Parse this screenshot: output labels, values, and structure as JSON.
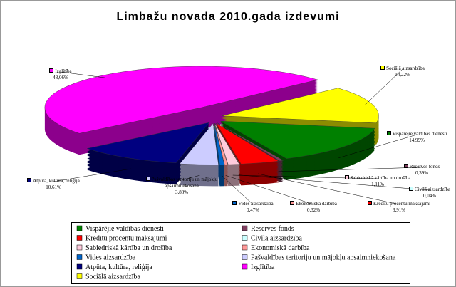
{
  "chart_data": {
    "type": "pie",
    "title": "Limbažu novada 2010.gada izdevumi",
    "categories": [
      "Vispārējie valdības dienesti",
      "Reserves fonds",
      "Kredītu procentu maksājumi",
      "Civilā aizsardzība",
      "Sabiedriskā kārtība un drošība",
      "Ekonomiskā darbība",
      "Vides aizsardzība",
      "Pašvaldības teritoriju un mājokļu apsaimniekošana",
      "Atpūta, kultūra, reliģija",
      "Izglītība",
      "Sociālā aizsardzība"
    ],
    "values": [
      14.99,
      0.39,
      3.91,
      0.04,
      1.11,
      0.32,
      0.47,
      3.88,
      10.61,
      48.06,
      14.22
    ],
    "value_labels": [
      "14,99%",
      "0,39%",
      "3,91%",
      "0,04%",
      "1,11%",
      "0,32%",
      "0,47%",
      "3,88%",
      "10,61%",
      "48,06%",
      "14,22%"
    ],
    "colors": [
      "#008000",
      "#7f3f5f",
      "#ff0000",
      "#ccffff",
      "#ffccdd",
      "#ff9999",
      "#0066cc",
      "#ccccff",
      "#000080",
      "#ff00ff",
      "#ffff00"
    ]
  }
}
